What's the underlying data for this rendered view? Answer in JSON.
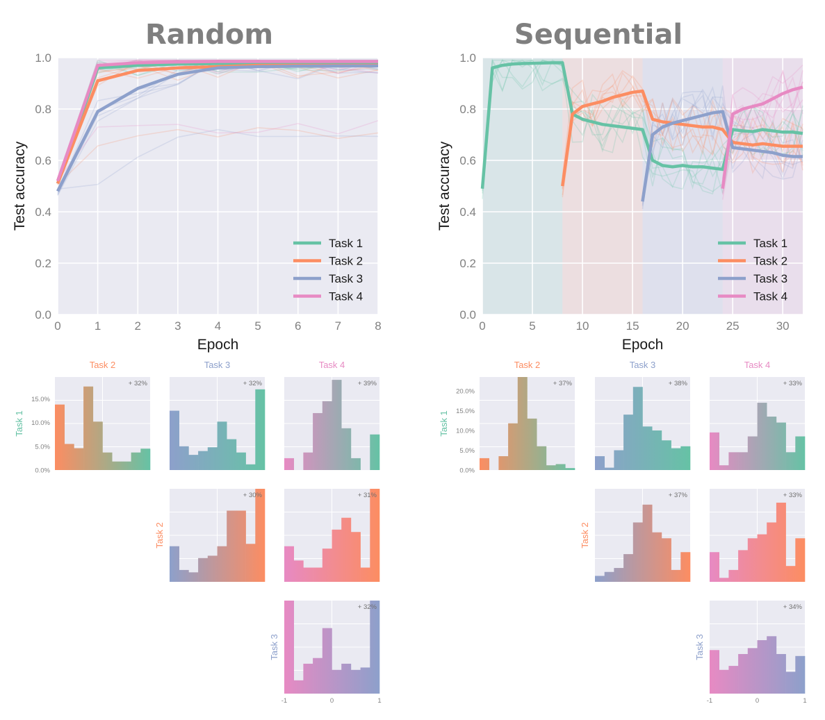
{
  "colors": {
    "task1": "#66c2a5",
    "task2": "#fc8d62",
    "task3": "#8da0cb",
    "task4": "#e78ac3",
    "panel_bg": "#eaeaf2",
    "grid": "#ffffff"
  },
  "chart_data": [
    {
      "type": "line",
      "title": "Random",
      "xlabel": "Epoch",
      "ylabel": "Test accuracy",
      "xlim": [
        0,
        8
      ],
      "ylim": [
        0,
        1
      ],
      "xticks": [
        "0",
        "1",
        "2",
        "3",
        "4",
        "5",
        "6",
        "7",
        "8"
      ],
      "yticks": [
        "0.0",
        "0.2",
        "0.4",
        "0.6",
        "0.8",
        "1.0"
      ],
      "legend_position": "bottom-right",
      "legend": [
        "Task 1",
        "Task 2",
        "Task 3",
        "Task 4"
      ],
      "series": [
        {
          "name": "Task 1",
          "x": [
            0,
            1,
            2,
            3,
            4,
            5,
            6,
            7,
            8
          ],
          "values": [
            0.51,
            0.96,
            0.97,
            0.975,
            0.977,
            0.978,
            0.978,
            0.978,
            0.978
          ]
        },
        {
          "name": "Task 2",
          "x": [
            0,
            1,
            2,
            3,
            4,
            5,
            6,
            7,
            8
          ],
          "values": [
            0.51,
            0.91,
            0.95,
            0.96,
            0.965,
            0.97,
            0.97,
            0.97,
            0.97
          ]
        },
        {
          "name": "Task 3",
          "x": [
            0,
            1,
            2,
            3,
            4,
            5,
            6,
            7,
            8
          ],
          "values": [
            0.48,
            0.79,
            0.88,
            0.935,
            0.96,
            0.965,
            0.967,
            0.968,
            0.968
          ]
        },
        {
          "name": "Task 4",
          "x": [
            0,
            1,
            2,
            3,
            4,
            5,
            6,
            7,
            8
          ],
          "values": [
            0.52,
            0.97,
            0.98,
            0.983,
            0.985,
            0.985,
            0.985,
            0.985,
            0.985
          ]
        }
      ]
    },
    {
      "type": "line",
      "title": "Sequential",
      "xlabel": "Epoch",
      "ylabel": "Test accuracy",
      "xlim": [
        0,
        32
      ],
      "ylim": [
        0,
        1
      ],
      "xticks": [
        "0",
        "5",
        "10",
        "15",
        "20",
        "25",
        "30"
      ],
      "yticks": [
        "0.0",
        "0.2",
        "0.4",
        "0.6",
        "0.8",
        "1.0"
      ],
      "legend_position": "bottom-right",
      "legend": [
        "Task 1",
        "Task 2",
        "Task 3",
        "Task 4"
      ],
      "task_phases": [
        [
          0,
          8,
          "Task 1"
        ],
        [
          8,
          16,
          "Task 2"
        ],
        [
          16,
          24,
          "Task 3"
        ],
        [
          24,
          32,
          "Task 4"
        ]
      ],
      "series": [
        {
          "name": "Task 1",
          "x": [
            0,
            1,
            2,
            3,
            4,
            5,
            6,
            7,
            8,
            9,
            10,
            11,
            12,
            13,
            14,
            15,
            16,
            17,
            18,
            19,
            20,
            21,
            22,
            23,
            24,
            25,
            26,
            27,
            28,
            29,
            30,
            31,
            32
          ],
          "values": [
            0.49,
            0.96,
            0.97,
            0.975,
            0.977,
            0.978,
            0.979,
            0.98,
            0.98,
            0.78,
            0.76,
            0.75,
            0.74,
            0.735,
            0.73,
            0.725,
            0.72,
            0.6,
            0.58,
            0.575,
            0.58,
            0.575,
            0.575,
            0.57,
            0.565,
            0.72,
            0.715,
            0.712,
            0.72,
            0.715,
            0.71,
            0.71,
            0.705
          ]
        },
        {
          "name": "Task 2",
          "x": [
            8,
            9,
            10,
            11,
            12,
            13,
            14,
            15,
            16,
            17,
            18,
            19,
            20,
            21,
            22,
            23,
            24,
            25,
            26,
            27,
            28,
            29,
            30,
            31,
            32
          ],
          "values": [
            0.5,
            0.78,
            0.81,
            0.82,
            0.83,
            0.845,
            0.855,
            0.865,
            0.87,
            0.76,
            0.75,
            0.745,
            0.74,
            0.735,
            0.73,
            0.73,
            0.72,
            0.67,
            0.665,
            0.66,
            0.665,
            0.66,
            0.655,
            0.655,
            0.655
          ]
        },
        {
          "name": "Task 3",
          "x": [
            16,
            17,
            18,
            19,
            20,
            21,
            22,
            23,
            24,
            25,
            26,
            27,
            28,
            29,
            30,
            31,
            32
          ],
          "values": [
            0.44,
            0.7,
            0.73,
            0.745,
            0.755,
            0.765,
            0.775,
            0.785,
            0.79,
            0.65,
            0.645,
            0.64,
            0.635,
            0.63,
            0.62,
            0.615,
            0.615
          ]
        },
        {
          "name": "Task 4",
          "x": [
            24,
            25,
            26,
            27,
            28,
            29,
            30,
            31,
            32
          ],
          "values": [
            0.49,
            0.78,
            0.8,
            0.81,
            0.82,
            0.84,
            0.86,
            0.875,
            0.885
          ]
        }
      ]
    },
    {
      "type": "histogram-matrix",
      "group": "Random",
      "xticks": [
        "-1",
        "0",
        "1"
      ],
      "yticks": [
        "0.0%",
        "5.0%",
        "10.0%",
        "15.0%"
      ],
      "bins": 10,
      "range": [
        -1,
        1
      ],
      "cells": [
        {
          "col_task": "Task 2",
          "row_task": "Task 1",
          "pct": "+ 32%",
          "values": [
            13.8,
            5.5,
            4.6,
            17.6,
            10.2,
            3.7,
            1.8,
            1.8,
            3.7,
            4.5
          ]
        },
        {
          "col_task": "Task 3",
          "row_task": "Task 1",
          "pct": "+ 32%",
          "values": [
            12.5,
            5.0,
            3.2,
            4.0,
            4.8,
            10.2,
            6.5,
            3.7,
            1.2,
            17.0
          ]
        },
        {
          "col_task": "Task 4",
          "row_task": "Task 1",
          "pct": "+ 39%",
          "values": [
            2.5,
            0,
            3.7,
            12.0,
            14.5,
            19.0,
            8.8,
            2.5,
            0,
            7.5
          ]
        },
        {
          "col_task": "Task 3",
          "row_task": "Task 2",
          "pct": "+ 30%",
          "values": [
            7.5,
            2.5,
            2.0,
            5.0,
            5.5,
            7.5,
            15.0,
            15.0,
            8.0,
            24.5
          ]
        },
        {
          "col_task": "Task 4",
          "row_task": "Task 2",
          "pct": "+ 31%",
          "values": [
            7.5,
            4.5,
            3.0,
            3.0,
            7.0,
            11.0,
            13.5,
            10.5,
            3.0,
            25.5
          ]
        },
        {
          "col_task": "Task 4",
          "row_task": "Task 3",
          "pct": "+ 32%",
          "values": [
            23.0,
            2.8,
            6.3,
            7.5,
            13.8,
            5.0,
            6.3,
            5.0,
            5.5,
            21.5
          ]
        }
      ],
      "row_labels": [
        "Task 1",
        "Task 2",
        "Task 3"
      ],
      "col_labels": [
        "Task 2",
        "Task 3",
        "Task 4"
      ]
    },
    {
      "type": "histogram-matrix",
      "group": "Sequential",
      "xticks": [
        "-1",
        "0",
        "1"
      ],
      "yticks": [
        "0.0%",
        "5.0%",
        "10.0%",
        "15.0%",
        "20.0%"
      ],
      "bins": 10,
      "range": [
        -1,
        1
      ],
      "cells": [
        {
          "col_task": "Task 2",
          "row_task": "Task 1",
          "pct": "+ 37%",
          "values": [
            3.0,
            0,
            3.5,
            11.8,
            23.5,
            13.0,
            6.0,
            1.2,
            1.5,
            0.5
          ]
        },
        {
          "col_task": "Task 3",
          "row_task": "Task 1",
          "pct": "+ 38%",
          "values": [
            3.5,
            0.6,
            5.0,
            14.0,
            21.0,
            11.0,
            10.0,
            7.5,
            5.5,
            6.0
          ]
        },
        {
          "col_task": "Task 4",
          "row_task": "Task 1",
          "pct": "+ 33%",
          "values": [
            9.5,
            1.2,
            4.5,
            4.5,
            8.5,
            17.0,
            13.5,
            12.0,
            4.5,
            8.5
          ]
        },
        {
          "col_task": "Task 3",
          "row_task": "Task 2",
          "pct": "+ 37%",
          "values": [
            1.5,
            2.5,
            3.5,
            7.0,
            15.0,
            19.5,
            12.5,
            11.0,
            3.0,
            7.5
          ]
        },
        {
          "col_task": "Task 4",
          "row_task": "Task 2",
          "pct": "+ 33%",
          "values": [
            7.5,
            1.0,
            3.0,
            8.0,
            11.0,
            12.0,
            15.0,
            20.0,
            4.0,
            11.0
          ]
        },
        {
          "col_task": "Task 4",
          "row_task": "Task 3",
          "pct": "+ 34%",
          "values": [
            11.0,
            6.0,
            7.0,
            10.0,
            11.5,
            13.5,
            14.5,
            10.0,
            5.5,
            9.5
          ]
        }
      ],
      "row_labels": [
        "Task 1",
        "Task 2",
        "Task 3"
      ],
      "col_labels": [
        "Task 2",
        "Task 3",
        "Task 4"
      ]
    }
  ]
}
